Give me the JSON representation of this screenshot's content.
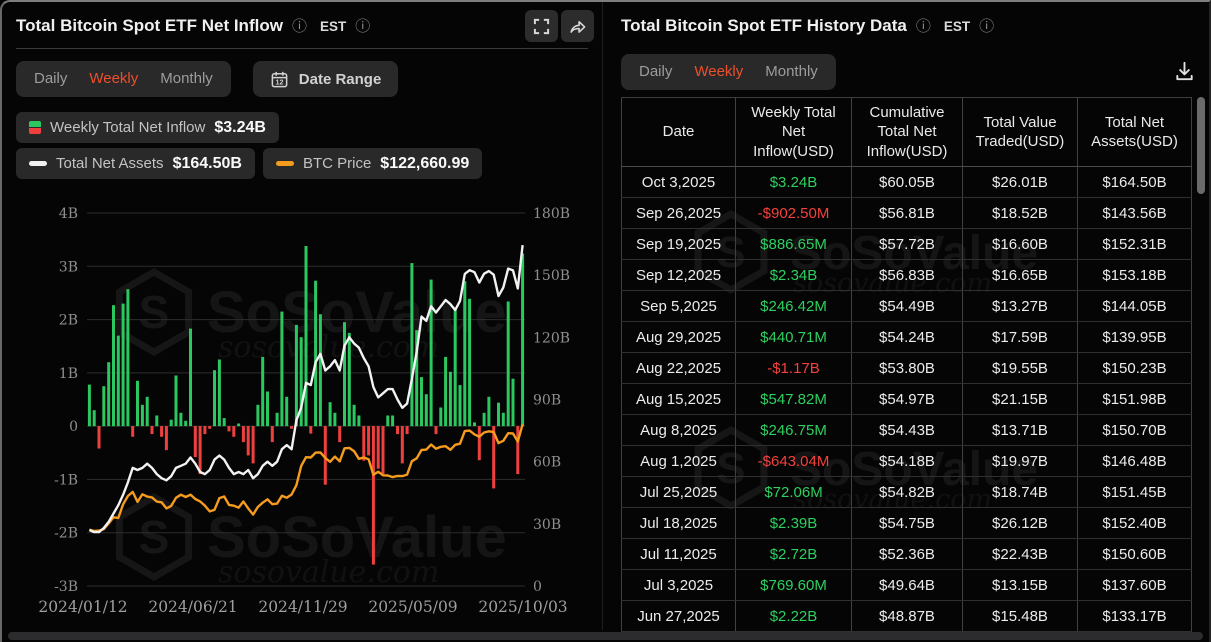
{
  "watermark": {
    "brand": "SoSoValue",
    "domain": "sosovalue.com"
  },
  "colors": {
    "accent_orange": "#ee4f2a",
    "bar_green": "#2bc860",
    "bar_red": "#ef4040",
    "table_green": "#2dd05f",
    "table_red": "#f5413d",
    "btc_line": "#f59b1e",
    "assets_line": "#f2f2f2",
    "grid": "#2d2d2d",
    "axis_text": "#8f8f8f",
    "chip_bg": "#29292a"
  },
  "left_panel": {
    "title": "Total Bitcoin Spot ETF Net Inflow",
    "timezone": "EST",
    "tabs": [
      {
        "label": "Daily",
        "active": false
      },
      {
        "label": "Weekly",
        "active": true
      },
      {
        "label": "Monthly",
        "active": false
      }
    ],
    "date_range_label": "Date Range",
    "legend": [
      {
        "label": "Weekly Total Net Inflow",
        "value": "$3.24B",
        "swatch": "bar-green-red"
      },
      {
        "label": "Total Net Assets",
        "value": "$164.50B",
        "swatch": "line-white"
      },
      {
        "label": "BTC Price",
        "value": "$122,660.99",
        "swatch": "line-orange"
      }
    ]
  },
  "chart_data": {
    "type": "combo-bar-line",
    "x": {
      "start": "2024/01/12",
      "end": "2025/10/03",
      "interval": "weekly",
      "points": 91,
      "tick_labels": [
        "2024/01/12",
        "2024/06/21",
        "2024/11/29",
        "2025/05/09",
        "2025/10/03"
      ]
    },
    "left_axis": {
      "ticks": [
        "4B",
        "3B",
        "2B",
        "1B",
        "0",
        "-1B",
        "-2B",
        "-3B"
      ],
      "min": -3,
      "max": 4,
      "unit": "USD B"
    },
    "right_axis": {
      "ticks": [
        "180B",
        "150B",
        "120B",
        "90B",
        "60B",
        "30B",
        "0"
      ],
      "min": 0,
      "max": 180,
      "unit": "USD B"
    },
    "btc_hidden_axis_max_usd": 283000,
    "grid": true,
    "legend_position": "top-left",
    "series": [
      {
        "name": "Weekly Total Net Inflow",
        "type": "bar",
        "axis": "left",
        "unit": "USD B",
        "values": [
          0.78,
          0.3,
          -0.42,
          0.75,
          1.2,
          2.27,
          1.7,
          2.3,
          2.57,
          -0.2,
          0.85,
          0.4,
          0.55,
          -0.15,
          0.2,
          -0.2,
          -0.45,
          0.12,
          0.95,
          0.25,
          0.1,
          1.83,
          -0.58,
          -0.9,
          -0.15,
          -0.05,
          1.05,
          1.25,
          0.15,
          -0.1,
          -0.2,
          0.05,
          -0.3,
          -0.55,
          -0.7,
          0.4,
          1.3,
          0.65,
          -0.3,
          0.25,
          2.15,
          0.55,
          -0.05,
          1.9,
          1.67,
          3.38,
          -0.14,
          2.73,
          2.1,
          -1.1,
          0.45,
          0.25,
          -0.3,
          1.95,
          1.75,
          0.4,
          0.2,
          -0.65,
          -0.55,
          -2.6,
          -0.8,
          -0.9,
          0.2,
          0.2,
          -0.15,
          -0.7,
          -0.15,
          3.06,
          1.8,
          0.92,
          0.6,
          2.75,
          -0.15,
          0.35,
          1.3,
          1.02,
          2.22,
          0.77,
          2.72,
          2.39,
          0.07,
          -0.64,
          0.25,
          0.55,
          -1.17,
          0.44,
          0.25,
          2.34,
          0.89,
          -0.9,
          3.24
        ]
      },
      {
        "name": "Total Net Assets",
        "type": "line",
        "axis": "right",
        "unit": "USD B",
        "values": [
          27,
          26,
          26,
          28,
          31,
          35,
          39,
          44,
          50,
          57,
          56,
          57,
          59,
          57,
          54,
          52,
          51,
          53,
          57,
          58,
          59,
          62,
          59,
          55,
          54,
          56,
          61,
          63,
          61,
          57,
          54,
          55,
          54,
          56,
          52,
          54,
          58,
          60,
          58,
          60,
          66,
          68,
          66,
          80,
          86,
          98,
          97,
          108,
          112,
          104,
          106,
          109,
          104,
          116,
          120,
          117,
          115,
          110,
          106,
          96,
          91,
          93,
          95,
          95,
          90,
          86,
          88,
          100,
          113,
          130,
          128,
          135,
          132,
          135,
          138,
          136,
          133.17,
          137.6,
          150.6,
          152.4,
          151.45,
          146.48,
          150.7,
          151.98,
          150.23,
          139.95,
          144.05,
          153.18,
          152.31,
          143.56,
          164.5
        ]
      },
      {
        "name": "BTC Price",
        "type": "line",
        "axis": "hidden-btc",
        "unit": "USD",
        "values": [
          42800,
          41700,
          42000,
          43200,
          47500,
          52100,
          51600,
          62000,
          68300,
          71400,
          63800,
          69600,
          67800,
          67200,
          64000,
          63500,
          58900,
          60800,
          66900,
          69300,
          67500,
          69300,
          66000,
          64200,
          60900,
          56600,
          57800,
          66700,
          67900,
          61500,
          60900,
          59400,
          64100,
          58900,
          54200,
          60000,
          63200,
          65800,
          62100,
          62500,
          68400,
          67000,
          69400,
          76500,
          91100,
          97700,
          97500,
          101200,
          101400,
          97200,
          94200,
          98200,
          94600,
          104500,
          104800,
          102300,
          96500,
          97500,
          96200,
          84400,
          86700,
          84000,
          83800,
          82600,
          83500,
          83400,
          84500,
          94700,
          96900,
          103200,
          103500,
          107300,
          104200,
          105600,
          106100,
          103300,
          107100,
          108000,
          117500,
          117900,
          115000,
          113300,
          116500,
          117400,
          116800,
          108400,
          110200,
          115900,
          115700,
          109600,
          122660.99
        ]
      }
    ]
  },
  "right_panel": {
    "title": "Total Bitcoin Spot ETF History Data",
    "timezone": "EST",
    "tabs": [
      {
        "label": "Daily",
        "active": false
      },
      {
        "label": "Weekly",
        "active": true
      },
      {
        "label": "Monthly",
        "active": false
      }
    ],
    "table": {
      "columns": [
        "Date",
        "Weekly Total Net Inflow(USD)",
        "Cumulative Total Net Inflow(USD)",
        "Total Value Traded(USD)",
        "Total Net Assets(USD)"
      ],
      "rows": [
        [
          "Oct 3,2025",
          "$3.24B",
          "$60.05B",
          "$26.01B",
          "$164.50B"
        ],
        [
          "Sep 26,2025",
          "-$902.50M",
          "$56.81B",
          "$18.52B",
          "$143.56B"
        ],
        [
          "Sep 19,2025",
          "$886.65M",
          "$57.72B",
          "$16.60B",
          "$152.31B"
        ],
        [
          "Sep 12,2025",
          "$2.34B",
          "$56.83B",
          "$16.65B",
          "$153.18B"
        ],
        [
          "Sep 5,2025",
          "$246.42M",
          "$54.49B",
          "$13.27B",
          "$144.05B"
        ],
        [
          "Aug 29,2025",
          "$440.71M",
          "$54.24B",
          "$17.59B",
          "$139.95B"
        ],
        [
          "Aug 22,2025",
          "-$1.17B",
          "$53.80B",
          "$19.55B",
          "$150.23B"
        ],
        [
          "Aug 15,2025",
          "$547.82M",
          "$54.97B",
          "$21.15B",
          "$151.98B"
        ],
        [
          "Aug 8,2025",
          "$246.75M",
          "$54.43B",
          "$13.71B",
          "$150.70B"
        ],
        [
          "Aug 1,2025",
          "-$643.04M",
          "$54.18B",
          "$19.97B",
          "$146.48B"
        ],
        [
          "Jul 25,2025",
          "$72.06M",
          "$54.82B",
          "$18.74B",
          "$151.45B"
        ],
        [
          "Jul 18,2025",
          "$2.39B",
          "$54.75B",
          "$26.12B",
          "$152.40B"
        ],
        [
          "Jul 11,2025",
          "$2.72B",
          "$52.36B",
          "$22.43B",
          "$150.60B"
        ],
        [
          "Jul 3,2025",
          "$769.60M",
          "$49.64B",
          "$13.15B",
          "$137.60B"
        ],
        [
          "Jun 27,2025",
          "$2.22B",
          "$48.87B",
          "$15.48B",
          "$133.17B"
        ]
      ]
    }
  }
}
